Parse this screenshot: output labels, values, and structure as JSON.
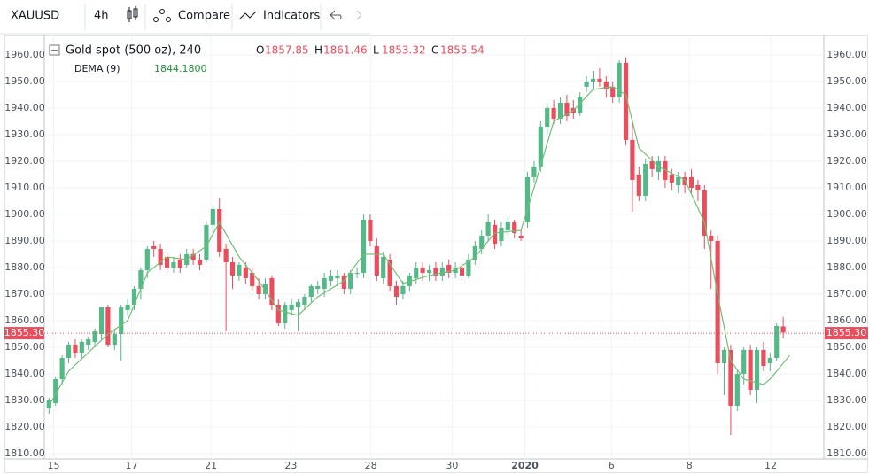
{
  "toolbar": {
    "symbol": "XAUUSD",
    "interval": "4h",
    "compare": "Compare",
    "indicators": "Indicators"
  },
  "chart_data": {
    "type": "candlestick",
    "title": "Gold spot (500 oz), 240",
    "ohlc_labels": [
      "O",
      "H",
      "L",
      "C"
    ],
    "ohlc_values": [
      1857.85,
      1861.46,
      1853.32,
      1855.54
    ],
    "up_color": "#53b987",
    "down_color": "#eb4d5c",
    "candles": [
      [
        1827,
        1831,
        1825,
        1830
      ],
      [
        1829,
        1839,
        1828,
        1838
      ],
      [
        1838,
        1847,
        1836,
        1846
      ],
      [
        1846,
        1852,
        1844,
        1851
      ],
      [
        1851,
        1853,
        1846,
        1848
      ],
      [
        1848,
        1853,
        1846,
        1852
      ],
      [
        1851,
        1854,
        1849,
        1853
      ],
      [
        1852,
        1857,
        1850,
        1856
      ],
      [
        1855,
        1865,
        1853,
        1865
      ],
      [
        1865,
        1866,
        1850,
        1851
      ],
      [
        1851,
        1857,
        1849,
        1855
      ],
      [
        1855,
        1866,
        1845,
        1865
      ],
      [
        1864,
        1868,
        1862,
        1866
      ],
      [
        1866,
        1873,
        1864,
        1872
      ],
      [
        1872,
        1880,
        1868,
        1879
      ],
      [
        1879,
        1888,
        1876,
        1887
      ],
      [
        1888,
        1890,
        1884,
        1887
      ],
      [
        1887,
        1889,
        1879,
        1881
      ],
      [
        1884,
        1886,
        1878,
        1880
      ],
      [
        1880,
        1884,
        1878,
        1882
      ],
      [
        1883,
        1885,
        1878,
        1880
      ],
      [
        1881,
        1887,
        1880,
        1885
      ],
      [
        1885,
        1887,
        1881,
        1883
      ],
      [
        1883,
        1885,
        1879,
        1881
      ],
      [
        1883,
        1897,
        1882,
        1896
      ],
      [
        1896,
        1903,
        1893,
        1902
      ],
      [
        1902,
        1906,
        1884,
        1886
      ],
      [
        1887,
        1889,
        1856,
        1882
      ],
      [
        1882,
        1884,
        1872,
        1877
      ],
      [
        1877,
        1882,
        1875,
        1881
      ],
      [
        1880,
        1882,
        1874,
        1876
      ],
      [
        1878,
        1880,
        1871,
        1873
      ],
      [
        1873,
        1876,
        1868,
        1870
      ],
      [
        1870,
        1876,
        1868,
        1874
      ],
      [
        1876,
        1877,
        1864,
        1866
      ],
      [
        1866,
        1868,
        1858,
        1859
      ],
      [
        1859,
        1867,
        1857,
        1866
      ],
      [
        1864,
        1868,
        1862,
        1866
      ],
      [
        1865,
        1868,
        1856,
        1867
      ],
      [
        1866,
        1870,
        1864,
        1869
      ],
      [
        1869,
        1874,
        1867,
        1873
      ],
      [
        1872,
        1875,
        1870,
        1873
      ],
      [
        1872,
        1878,
        1869,
        1876
      ],
      [
        1875,
        1879,
        1873,
        1877
      ],
      [
        1876,
        1879,
        1873,
        1877
      ],
      [
        1877,
        1878,
        1870,
        1872
      ],
      [
        1872,
        1879,
        1870,
        1878
      ],
      [
        1878,
        1880,
        1876,
        1878
      ],
      [
        1878,
        1900,
        1876,
        1898
      ],
      [
        1898,
        1900,
        1888,
        1890
      ],
      [
        1888,
        1891,
        1875,
        1877
      ],
      [
        1876,
        1886,
        1874,
        1884
      ],
      [
        1883,
        1885,
        1871,
        1873
      ],
      [
        1873,
        1875,
        1866,
        1869
      ],
      [
        1870,
        1875,
        1868,
        1873
      ],
      [
        1873,
        1878,
        1871,
        1877
      ],
      [
        1876,
        1882,
        1874,
        1880
      ],
      [
        1880,
        1882,
        1875,
        1878
      ],
      [
        1878,
        1881,
        1875,
        1879
      ],
      [
        1880,
        1882,
        1875,
        1877
      ],
      [
        1877,
        1882,
        1875,
        1880
      ],
      [
        1881,
        1883,
        1876,
        1878
      ],
      [
        1878,
        1882,
        1876,
        1880
      ],
      [
        1880,
        1882,
        1875,
        1877
      ],
      [
        1877,
        1885,
        1876,
        1883
      ],
      [
        1883,
        1890,
        1881,
        1888
      ],
      [
        1887,
        1894,
        1885,
        1892
      ],
      [
        1892,
        1900,
        1890,
        1897
      ],
      [
        1896,
        1898,
        1887,
        1889
      ],
      [
        1890,
        1897,
        1888,
        1895
      ],
      [
        1894,
        1899,
        1892,
        1897
      ],
      [
        1897,
        1898,
        1891,
        1893
      ],
      [
        1892,
        1894,
        1890,
        1891
      ],
      [
        1897,
        1916,
        1895,
        1914
      ],
      [
        1914,
        1920,
        1912,
        1918
      ],
      [
        1918,
        1935,
        1916,
        1933
      ],
      [
        1933,
        1942,
        1930,
        1940
      ],
      [
        1940,
        1943,
        1934,
        1936
      ],
      [
        1936,
        1944,
        1934,
        1942
      ],
      [
        1942,
        1945,
        1935,
        1937
      ],
      [
        1940,
        1943,
        1936,
        1938
      ],
      [
        1938,
        1946,
        1937,
        1944
      ],
      [
        1948,
        1952,
        1946,
        1950
      ],
      [
        1950,
        1954,
        1947,
        1951
      ],
      [
        1951,
        1955,
        1948,
        1950
      ],
      [
        1950,
        1952,
        1944,
        1947
      ],
      [
        1948,
        1950,
        1942,
        1944
      ],
      [
        1944,
        1958,
        1942,
        1957
      ],
      [
        1957,
        1959,
        1926,
        1928
      ],
      [
        1928,
        1935,
        1901,
        1913
      ],
      [
        1915,
        1918,
        1905,
        1907
      ],
      [
        1907,
        1921,
        1905,
        1919
      ],
      [
        1920,
        1922,
        1914,
        1917
      ],
      [
        1916,
        1922,
        1913,
        1920
      ],
      [
        1920,
        1922,
        1910,
        1913
      ],
      [
        1915,
        1917,
        1909,
        1912
      ],
      [
        1911,
        1916,
        1908,
        1914
      ],
      [
        1914,
        1916,
        1908,
        1911
      ],
      [
        1914,
        1917,
        1908,
        1910
      ],
      [
        1911,
        1913,
        1905,
        1909
      ],
      [
        1909,
        1911,
        1887,
        1892
      ],
      [
        1892,
        1894,
        1872,
        1890
      ],
      [
        1890,
        1892,
        1840,
        1844
      ],
      [
        1844,
        1850,
        1832,
        1849
      ],
      [
        1849,
        1851,
        1817,
        1828
      ],
      [
        1828,
        1842,
        1826,
        1840
      ],
      [
        1840,
        1850,
        1836,
        1849
      ],
      [
        1849,
        1851,
        1832,
        1834
      ],
      [
        1834,
        1850,
        1829,
        1849
      ],
      [
        1849,
        1852,
        1841,
        1843
      ],
      [
        1844,
        1848,
        1841,
        1846
      ],
      [
        1846,
        1859,
        1845,
        1858
      ],
      [
        1857.85,
        1861.46,
        1853.32,
        1855.54
      ]
    ],
    "indicator": {
      "name": "DEMA (9)",
      "value_label": "1844.1800",
      "color": "#6fbf73",
      "x": [
        0,
        3,
        6,
        9,
        12,
        15,
        18,
        21,
        24,
        26,
        29,
        32,
        35,
        38,
        41,
        45,
        48,
        51,
        54,
        58,
        62,
        65,
        68,
        72,
        74,
        77,
        80,
        83,
        86,
        88,
        90,
        93,
        97,
        100,
        102,
        104,
        106,
        109,
        110,
        113
      ],
      "values": [
        1828,
        1841,
        1848,
        1855,
        1860,
        1878,
        1884,
        1883,
        1888,
        1897,
        1884,
        1875,
        1864,
        1862,
        1869,
        1875,
        1885,
        1885,
        1874,
        1877,
        1879,
        1884,
        1893,
        1894,
        1910,
        1935,
        1939,
        1947,
        1948,
        1945,
        1925,
        1918,
        1913,
        1897,
        1870,
        1845,
        1838,
        1836,
        1838,
        1847
      ]
    },
    "price_line": {
      "value": 1855.3,
      "label": "1855.30",
      "color": "#eb4d5c"
    },
    "xlim": [
      -6.8,
      118.2
    ],
    "xticks": [
      {
        "value": 0.7,
        "label": "15"
      },
      {
        "value": 12.6,
        "label": "17"
      },
      {
        "value": 24.7,
        "label": "21"
      },
      {
        "value": 36.9,
        "label": "23"
      },
      {
        "value": 49.1,
        "label": "28"
      },
      {
        "value": 61.5,
        "label": "30"
      },
      {
        "value": 72.6,
        "label": "2020"
      },
      {
        "value": 85.8,
        "label": "6"
      },
      {
        "value": 97.7,
        "label": "8"
      },
      {
        "value": 110.1,
        "label": "12"
      }
    ],
    "ylim": [
      1808,
      1967.3
    ],
    "yticks": [
      {
        "value": 1810,
        "label": "1810.00"
      },
      {
        "value": 1820,
        "label": "1820.00"
      },
      {
        "value": 1830,
        "label": "1830.00"
      },
      {
        "value": 1840,
        "label": "1840.00"
      },
      {
        "value": 1850,
        "label": "1850.00"
      },
      {
        "value": 1860,
        "label": "1860.00"
      },
      {
        "value": 1870,
        "label": "1870.00"
      },
      {
        "value": 1880,
        "label": "1880.00"
      },
      {
        "value": 1890,
        "label": "1890.00"
      },
      {
        "value": 1900,
        "label": "1900.00"
      },
      {
        "value": 1910,
        "label": "1910.00"
      },
      {
        "value": 1920,
        "label": "1920.00"
      },
      {
        "value": 1930,
        "label": "1930.00"
      },
      {
        "value": 1940,
        "label": "1940.00"
      },
      {
        "value": 1950,
        "label": "1950.00"
      },
      {
        "value": 1960,
        "label": "1960.00"
      }
    ],
    "grid": true
  }
}
